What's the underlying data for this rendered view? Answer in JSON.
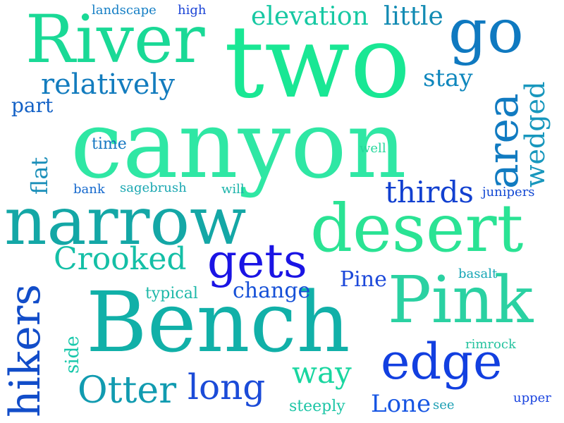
{
  "words": {
    "canyon": "canyon",
    "two": "two",
    "river": "River",
    "narrow": "narrow",
    "bench": "Bench",
    "desert": "desert",
    "pink": "Pink",
    "go": "go",
    "edge": "edge",
    "gets": "gets",
    "hikers": "hikers",
    "area": "area",
    "otter": "Otter",
    "long": "long",
    "crooked": "Crooked",
    "relatively": "relatively",
    "way": "way",
    "wedged": "wedged",
    "thirds": "thirds",
    "elevation": "elevation",
    "little": "little",
    "lone": "Lone",
    "stay": "stay",
    "flat": "flat",
    "change": "change",
    "pine": "Pine",
    "part": "part",
    "side": "side",
    "time": "time",
    "typical": "typical",
    "steeply": "steeply",
    "bank": "bank",
    "sagebrush": "sagebrush",
    "will": "will",
    "well": "well",
    "junipers": "junipers",
    "landscape": "landscape",
    "high": "high",
    "basalt": "basalt",
    "rimrock": "rimrock",
    "upper": "upper",
    "see": "see"
  },
  "palette": [
    "#19e794",
    "#14a7a6",
    "#117bc1",
    "#1240d0",
    "#1a14e4"
  ]
}
